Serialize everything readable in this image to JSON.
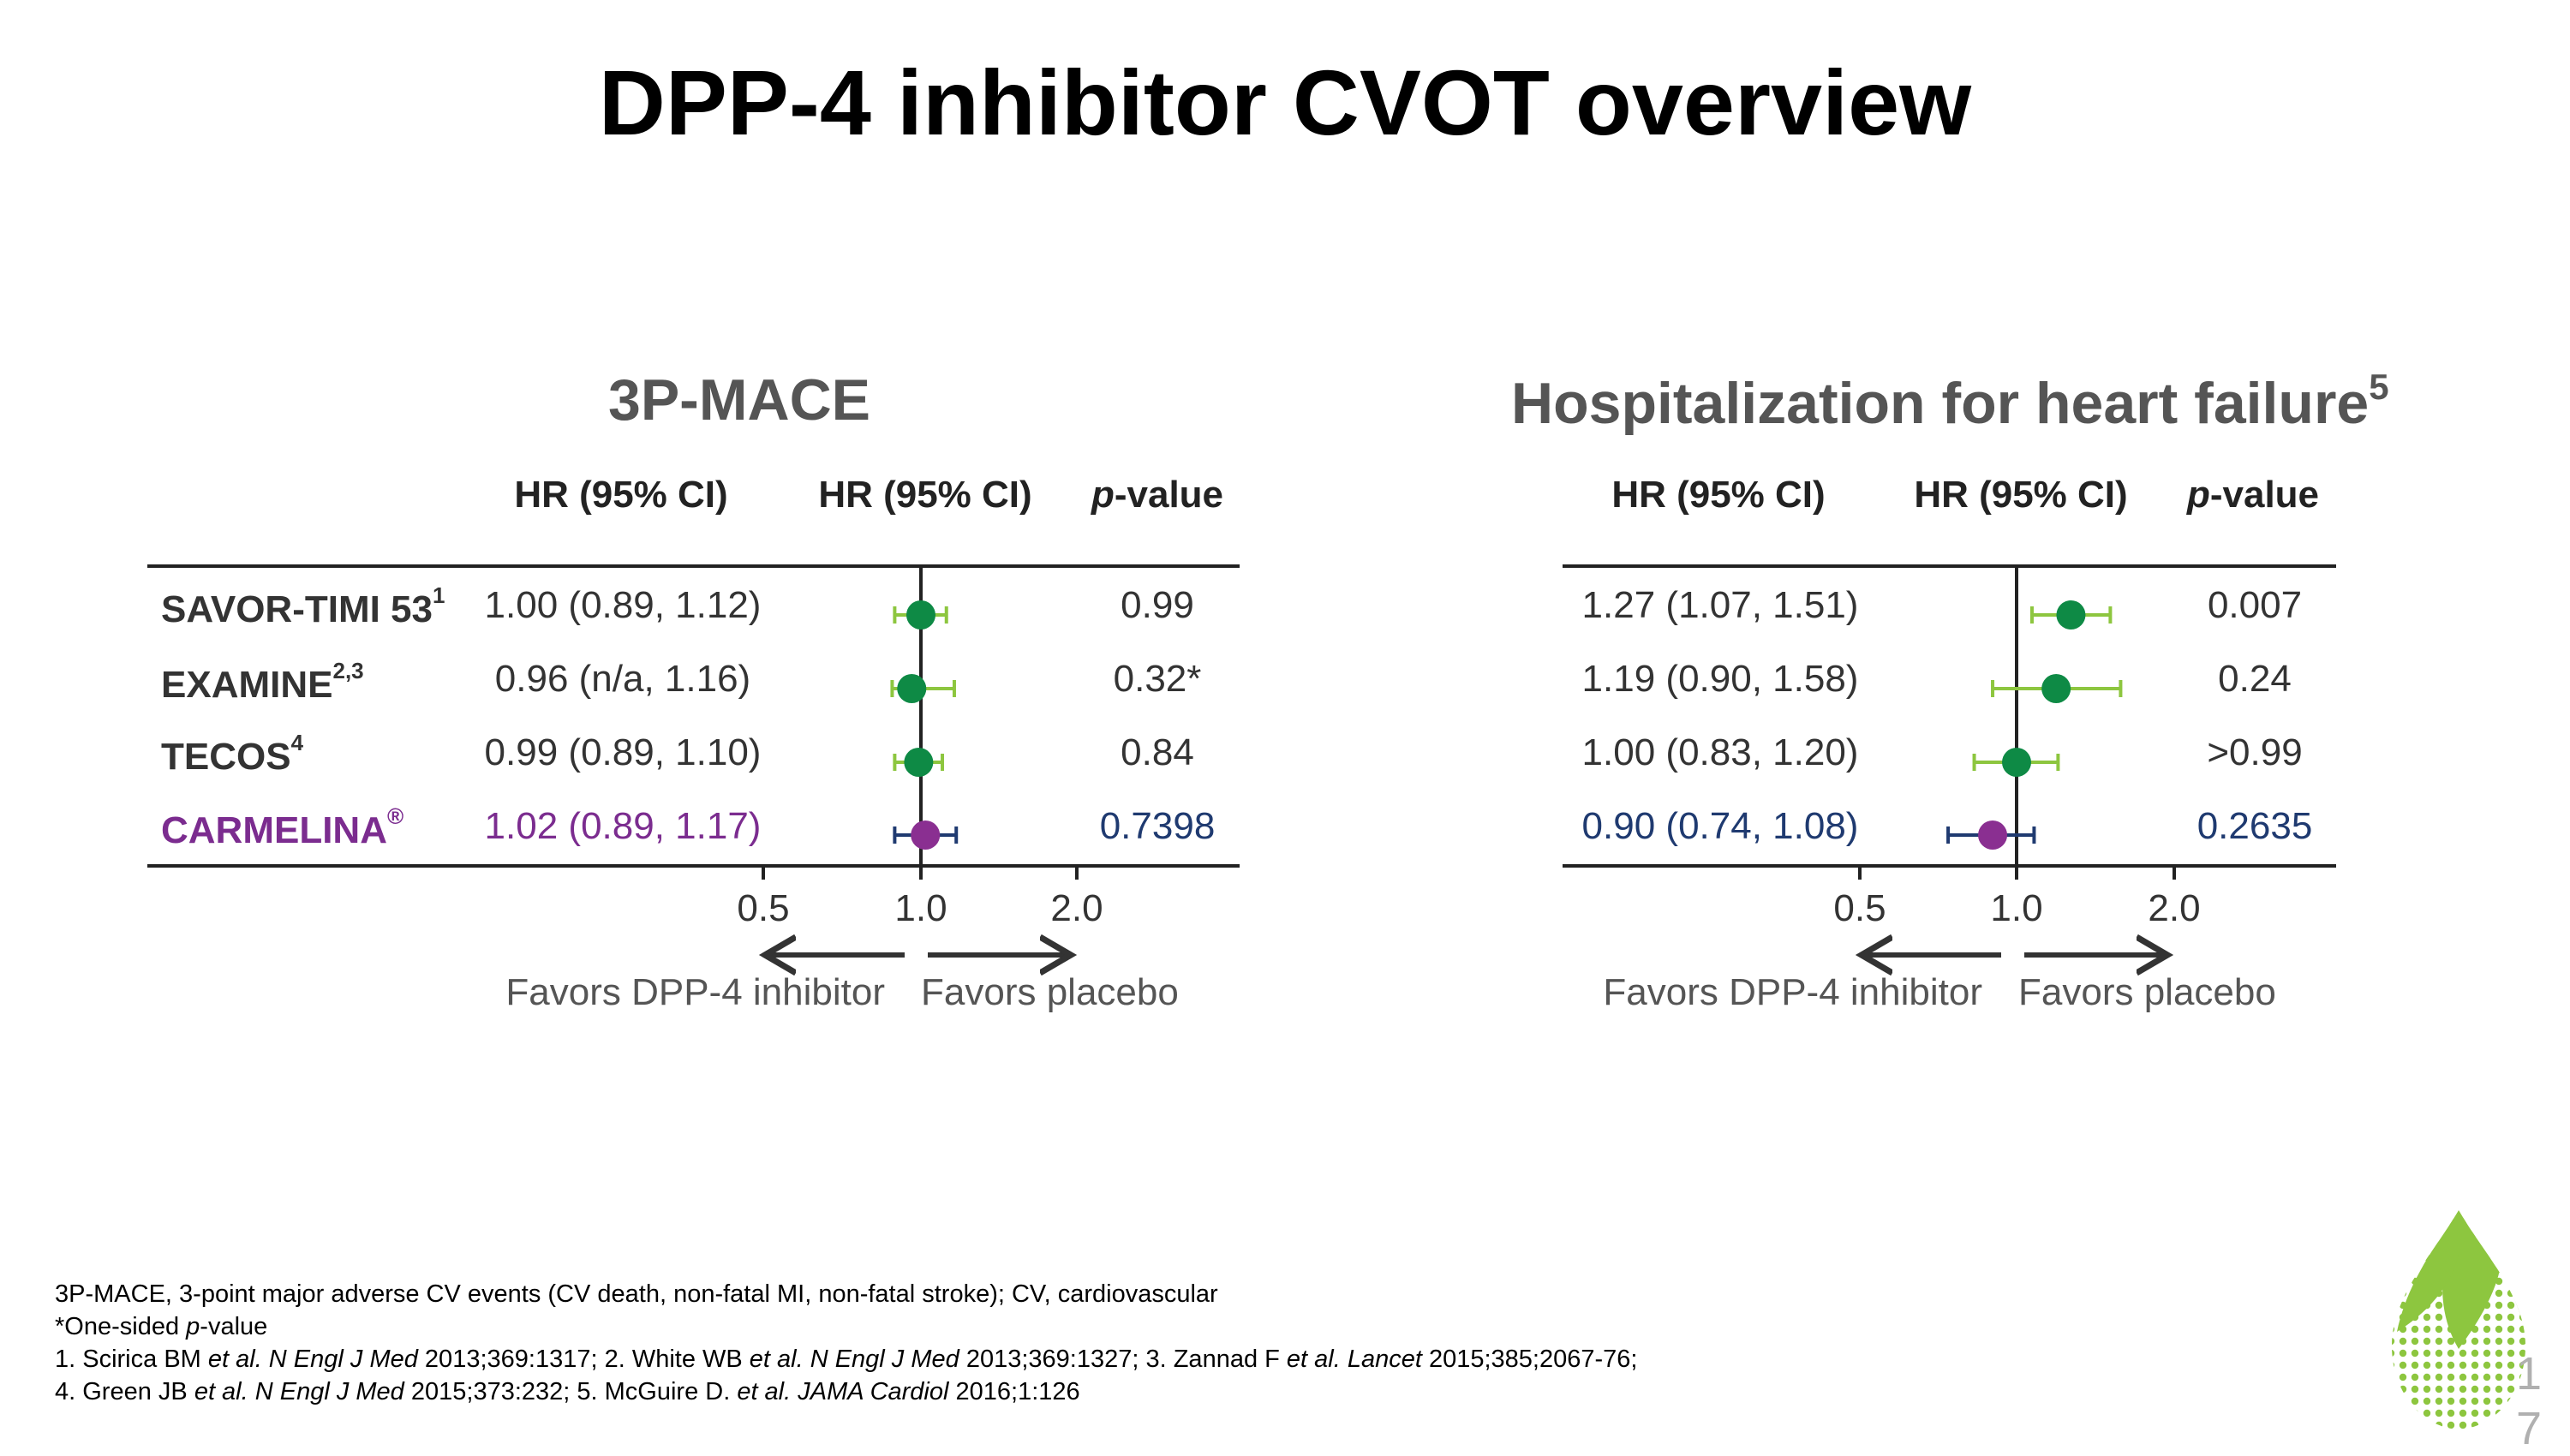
{
  "title": "DPP-4 inhibitor CVOT overview",
  "column_headers": {
    "hr": "HR (95% CI)",
    "hr_plot": "HR (95% CI)",
    "p_prefix": "p",
    "p_suffix": "-value"
  },
  "colors": {
    "green_point": "#0e8a45",
    "green_ci": "#8dc63f",
    "purple_point": "#8a2f91",
    "navy_ci": "#1f3a70",
    "axis": "#222222"
  },
  "chart_data": [
    {
      "type": "forest",
      "title": "3P-MACE",
      "title_superscript": "",
      "x_scale": "log",
      "ticks": [
        {
          "value": 0.5,
          "label": "0.5"
        },
        {
          "value": 1.0,
          "label": "1.0"
        },
        {
          "value": 2.0,
          "label": "2.0"
        }
      ],
      "reference_line": 1.0,
      "favors_left": "Favors DPP-4 inhibitor",
      "favors_right": "Favors placebo",
      "rows": [
        {
          "trial": "SAVOR-TIMI 53",
          "sup": "1",
          "hr": 1.0,
          "lo": 0.89,
          "hi": 1.12,
          "hr_text": "1.00 (0.89, 1.12)",
          "p": "0.99",
          "highlight": false
        },
        {
          "trial": "EXAMINE",
          "sup": "2,3",
          "hr": 0.96,
          "lo": 0.88,
          "hi": 1.16,
          "hr_text": "0.96 (n/a, 1.16)",
          "p": "0.32*",
          "highlight": false
        },
        {
          "trial": "TECOS",
          "sup": "4",
          "hr": 0.99,
          "lo": 0.89,
          "hi": 1.1,
          "hr_text": "0.99 (0.89, 1.10)",
          "p": "0.84",
          "highlight": false
        },
        {
          "trial": "CARMELINA",
          "sup": "®",
          "hr": 1.02,
          "lo": 0.89,
          "hi": 1.17,
          "hr_text": "1.02 (0.89, 1.17)",
          "p": "0.7398",
          "highlight": true
        }
      ]
    },
    {
      "type": "forest",
      "title": "Hospitalization for heart failure",
      "title_superscript": "5",
      "x_scale": "log",
      "ticks": [
        {
          "value": 0.5,
          "label": "0.5"
        },
        {
          "value": 1.0,
          "label": "1.0"
        },
        {
          "value": 2.0,
          "label": "2.0"
        }
      ],
      "reference_line": 1.0,
      "favors_left": "Favors DPP-4 inhibitor",
      "favors_right": "Favors placebo",
      "rows": [
        {
          "hr": 1.27,
          "lo": 1.07,
          "hi": 1.51,
          "hr_text": "1.27 (1.07, 1.51)",
          "p": "0.007",
          "highlight": false
        },
        {
          "hr": 1.19,
          "lo": 0.9,
          "hi": 1.58,
          "hr_text": "1.19 (0.90, 1.58)",
          "p": "0.24",
          "highlight": false
        },
        {
          "hr": 1.0,
          "lo": 0.83,
          "hi": 1.2,
          "hr_text": "1.00 (0.83, 1.20)",
          "p": ">0.99",
          "highlight": false
        },
        {
          "hr": 0.9,
          "lo": 0.74,
          "hi": 1.08,
          "hr_text": "0.90 (0.74, 1.08)",
          "p": "0.2635",
          "highlight": true
        }
      ]
    }
  ],
  "footnotes": {
    "abbrev": "3P-MACE, 3-point major adverse CV events (CV death, non-fatal MI, non-fatal stroke); CV, cardiovascular",
    "onesided_a": "*One-sided ",
    "onesided_p": "p",
    "onesided_b": "-value",
    "ref1_a": "1. Scirica BM ",
    "ref1_b": "et al. N Engl J Med",
    "ref1_c": " 2013;369:1317; 2. White WB ",
    "ref1_d": "et al. N Engl J Med",
    "ref1_e": " 2013;369:1327; 3. Zannad F ",
    "ref1_f": "et al. Lancet",
    "ref1_g": " 2015;385;2067-76;",
    "ref2_a": "4. Green JB ",
    "ref2_b": "et al. N Engl J Med",
    "ref2_c": " 2015;373:232; 5. McGuire D. ",
    "ref2_d": "et al. JAMA Cardiol",
    "ref2_e": " 2016;1:126"
  },
  "page_number_1": "1",
  "page_number_2": "7",
  "logo_icon": "leaf-logo-icon"
}
